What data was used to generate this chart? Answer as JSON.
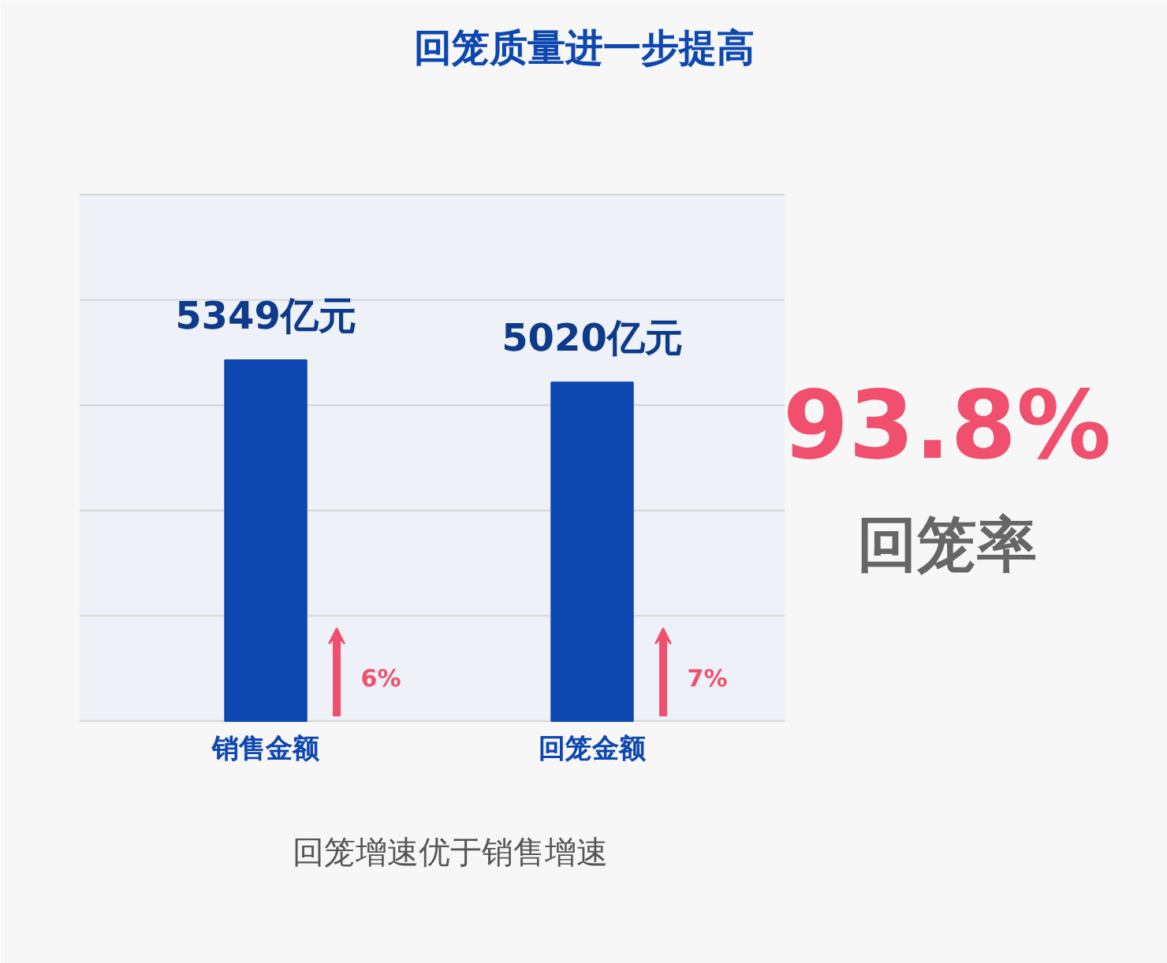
{
  "chart_data": {
    "type": "bar",
    "title": "回笼质量进一步提高",
    "categories": [
      "销售金额",
      "回笼金额"
    ],
    "values": [
      5349,
      5020
    ],
    "value_labels": [
      "5349亿元",
      "5020亿元"
    ],
    "color": "#0d47b0",
    "grid": "y",
    "tick_labels": "x",
    "annotations": [
      "6%",
      "7%",
      "93.8%",
      "回笼率",
      "回笼增速优于销售增速"
    ]
  }
}
